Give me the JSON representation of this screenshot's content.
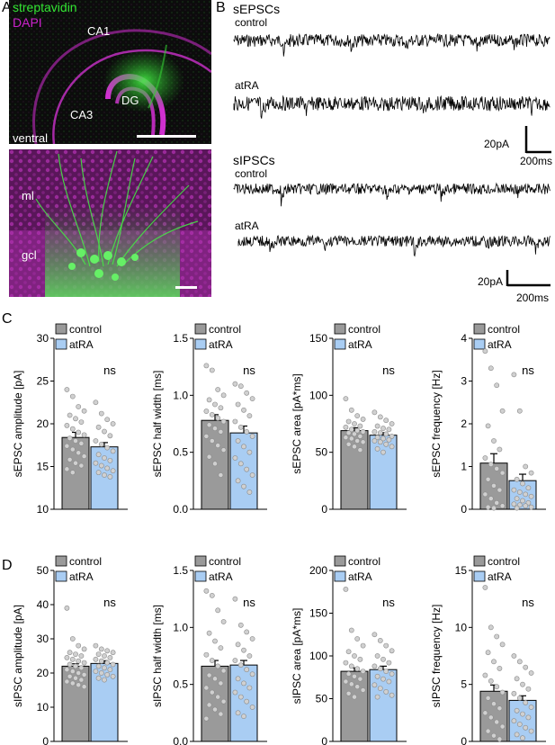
{
  "panel_a": {
    "letter": "A",
    "legend_streptavidin": "streptavidin",
    "legend_dapi": "DAPI",
    "region_ca1": "CA1",
    "region_ca3": "CA3",
    "region_dg": "DG",
    "region_ventral": "ventral",
    "layer_ml": "ml",
    "layer_gcl": "gcl",
    "colors": {
      "streptavidin": "#33e633",
      "dapi": "#cc22cc",
      "background": "#0b0b0b"
    }
  },
  "panel_b": {
    "letter": "B",
    "sepsc_title": "sEPSCs",
    "sipsc_title": "sIPSCs",
    "control_label": "control",
    "atra_label": "atRA",
    "scalebar_current": "20pA",
    "scalebar_time": "200ms"
  },
  "panel_c_letter": "C",
  "panel_d_letter": "D",
  "legend": {
    "control": "control",
    "atra": "atRA"
  },
  "colors": {
    "control": "#9a9a9a",
    "atra": "#a9cdf3",
    "point": "#d0d0d0"
  },
  "chart_data": [
    {
      "type": "bar",
      "id": "sepsc-amplitude",
      "ylabel": "sEPSC amplitude [pA]",
      "ylim": [
        10,
        30
      ],
      "yticks": [
        "10",
        "15",
        "20",
        "25",
        "30"
      ],
      "tick_values": [
        10,
        15,
        20,
        25,
        30
      ],
      "categories": [
        "control",
        "atRA"
      ],
      "values": [
        18.4,
        17.3
      ],
      "sem": [
        0.6,
        0.5
      ],
      "significance": "ns",
      "points": [
        [
          24.0,
          23.2,
          22.0,
          21.5,
          21.0,
          20.6,
          20.2,
          19.8,
          19.4,
          19.0,
          18.7,
          18.3,
          18.0,
          17.7,
          17.4,
          17.0,
          16.6,
          16.2,
          15.8,
          15.4,
          15.1,
          14.7,
          14.3
        ],
        [
          22.5,
          21.2,
          20.5,
          20.0,
          19.6,
          19.1,
          18.6,
          18.0,
          17.6,
          17.2,
          16.8,
          16.4,
          16.0,
          15.7,
          15.4,
          15.1,
          14.8,
          14.5,
          14.3,
          14.0,
          13.8
        ]
      ]
    },
    {
      "type": "bar",
      "id": "sepsc-half-width",
      "ylabel": "sEPSC half width [ms]",
      "ylim": [
        0,
        1.5
      ],
      "yticks": [
        "0.0",
        "0.5",
        "1.0",
        "1.5"
      ],
      "tick_values": [
        0,
        0.5,
        1.0,
        1.5
      ],
      "categories": [
        "control",
        "atRA"
      ],
      "values": [
        0.78,
        0.67
      ],
      "sem": [
        0.05,
        0.06
      ],
      "significance": "ns",
      "points": [
        [
          1.26,
          1.22,
          1.05,
          1.0,
          0.96,
          0.92,
          0.89,
          0.86,
          0.83,
          0.8,
          0.77,
          0.74,
          0.71,
          0.68,
          0.64,
          0.6,
          0.56,
          0.52,
          0.46,
          0.4,
          0.3
        ],
        [
          1.1,
          1.08,
          1.02,
          0.97,
          0.92,
          0.87,
          0.82,
          0.77,
          0.72,
          0.68,
          0.64,
          0.6,
          0.55,
          0.5,
          0.45,
          0.4,
          0.35,
          0.3,
          0.25,
          0.2,
          0.15
        ]
      ]
    },
    {
      "type": "bar",
      "id": "sepsc-area",
      "ylabel": "sEPSC area [pA*ms]",
      "ylim": [
        0,
        150
      ],
      "yticks": [
        "0",
        "50",
        "100",
        "150"
      ],
      "tick_values": [
        0,
        50,
        100,
        150
      ],
      "categories": [
        "control",
        "atRA"
      ],
      "values": [
        69,
        65
      ],
      "sem": [
        2.5,
        2.2
      ],
      "significance": "ns",
      "points": [
        [
          97,
          87,
          82,
          79,
          77,
          75,
          73,
          72,
          70,
          69,
          68,
          67,
          66,
          64,
          63,
          62,
          60,
          59,
          57,
          55,
          52
        ],
        [
          85,
          81,
          78,
          75,
          73,
          71,
          70,
          68,
          67,
          66,
          64,
          63,
          62,
          61,
          60,
          59,
          57,
          55,
          53,
          50
        ]
      ]
    },
    {
      "type": "bar",
      "id": "sepsc-frequency",
      "ylabel": "sEPSC frequency [Hz]",
      "ylim": [
        0,
        4
      ],
      "yticks": [
        "0",
        "1",
        "2",
        "3",
        "4"
      ],
      "tick_values": [
        0,
        1,
        2,
        3,
        4
      ],
      "categories": [
        "control",
        "atRA"
      ],
      "values": [
        1.08,
        0.67
      ],
      "sem": [
        0.22,
        0.15
      ],
      "significance": "ns",
      "points": [
        [
          3.7,
          3.3,
          2.9,
          2.3,
          1.95,
          1.6,
          1.4,
          1.2,
          1.05,
          0.95,
          0.85,
          0.7,
          0.55,
          0.45,
          0.35,
          0.25,
          0.15,
          0.08,
          0.05,
          0.03
        ],
        [
          3.15,
          2.3,
          1.0,
          0.85,
          0.7,
          0.6,
          0.5,
          0.45,
          0.4,
          0.35,
          0.3,
          0.25,
          0.2,
          0.15,
          0.12,
          0.1,
          0.08,
          0.05,
          0.03
        ]
      ]
    },
    {
      "type": "bar",
      "id": "sipsc-amplitude",
      "ylabel": "sIPSC amplitude [pA]",
      "ylim": [
        0,
        50
      ],
      "yticks": [
        "0",
        "10",
        "20",
        "30",
        "40",
        "50"
      ],
      "tick_values": [
        0,
        10,
        20,
        30,
        40,
        50
      ],
      "categories": [
        "control",
        "atRA"
      ],
      "values": [
        22.0,
        22.8
      ],
      "sem": [
        0.7,
        0.8
      ],
      "significance": "ns",
      "points": [
        [
          39,
          30,
          28,
          27,
          26,
          25.5,
          25,
          24.5,
          24,
          23.5,
          23,
          22.5,
          22,
          21.5,
          21,
          20.5,
          20,
          19.5,
          19,
          18.5,
          18,
          17.5,
          17,
          16.5,
          16
        ],
        [
          28,
          27,
          26.5,
          26,
          25.5,
          25,
          24.5,
          24,
          23.5,
          23,
          22.5,
          22,
          21.5,
          21,
          20.5,
          20,
          19.5,
          19,
          18.5,
          18
        ]
      ]
    },
    {
      "type": "bar",
      "id": "sipsc-half-width",
      "ylabel": "sIPSC half width [ms]",
      "ylim": [
        0,
        1.5
      ],
      "yticks": [
        "0.0",
        "0.5",
        "1.0",
        "1.5"
      ],
      "tick_values": [
        0,
        0.5,
        1.0,
        1.5
      ],
      "categories": [
        "control",
        "atRA"
      ],
      "values": [
        0.66,
        0.67
      ],
      "sem": [
        0.05,
        0.04
      ],
      "significance": "ns",
      "points": [
        [
          1.32,
          1.28,
          1.15,
          1.05,
          0.95,
          0.88,
          0.82,
          0.76,
          0.71,
          0.66,
          0.62,
          0.58,
          0.55,
          0.51,
          0.47,
          0.43,
          0.39,
          0.35,
          0.32,
          0.28,
          0.24,
          0.2
        ],
        [
          1.25,
          1.02,
          0.96,
          0.9,
          0.85,
          0.8,
          0.75,
          0.71,
          0.67,
          0.63,
          0.59,
          0.55,
          0.51,
          0.47,
          0.43,
          0.39,
          0.35,
          0.3,
          0.25,
          0.22
        ]
      ]
    },
    {
      "type": "bar",
      "id": "sipsc-area",
      "ylabel": "sIPSC area [pA*ms]",
      "ylim": [
        0,
        200
      ],
      "yticks": [
        "0",
        "50",
        "100",
        "150",
        "200"
      ],
      "tick_values": [
        0,
        50,
        100,
        150,
        200
      ],
      "categories": [
        "control",
        "atRA"
      ],
      "values": [
        82,
        84
      ],
      "sem": [
        4,
        4
      ],
      "significance": "ns",
      "points": [
        [
          178,
          130,
          120,
          112,
          105,
          100,
          96,
          92,
          88,
          85,
          82,
          79,
          76,
          73,
          70,
          67,
          64,
          60,
          56,
          52
        ],
        [
          125,
          118,
          112,
          106,
          100,
          96,
          92,
          88,
          85,
          82,
          79,
          76,
          73,
          70,
          66,
          62,
          58,
          54,
          52
        ]
      ]
    },
    {
      "type": "bar",
      "id": "sipsc-frequency",
      "ylabel": "sIPSC frequency [Hz]",
      "ylim": [
        0,
        15
      ],
      "yticks": [
        "0",
        "5",
        "10",
        "15"
      ],
      "tick_values": [
        0,
        5,
        10,
        15
      ],
      "categories": [
        "control",
        "atRA"
      ],
      "values": [
        4.4,
        3.6
      ],
      "sem": [
        0.55,
        0.4
      ],
      "significance": "ns",
      "points": [
        [
          13.5,
          10.0,
          9.2,
          8.5,
          7.8,
          7.0,
          6.4,
          5.8,
          5.3,
          4.8,
          4.3,
          3.8,
          3.3,
          2.9,
          2.5,
          2.1,
          1.7,
          1.3,
          0.9,
          0.5,
          0.2
        ],
        [
          7.5,
          7.0,
          6.5,
          6.0,
          5.5,
          5.0,
          4.6,
          4.2,
          3.8,
          3.4,
          3.0,
          2.7,
          2.4,
          2.1,
          1.8,
          1.5,
          1.2,
          0.9,
          0.6,
          0.3
        ]
      ]
    }
  ]
}
